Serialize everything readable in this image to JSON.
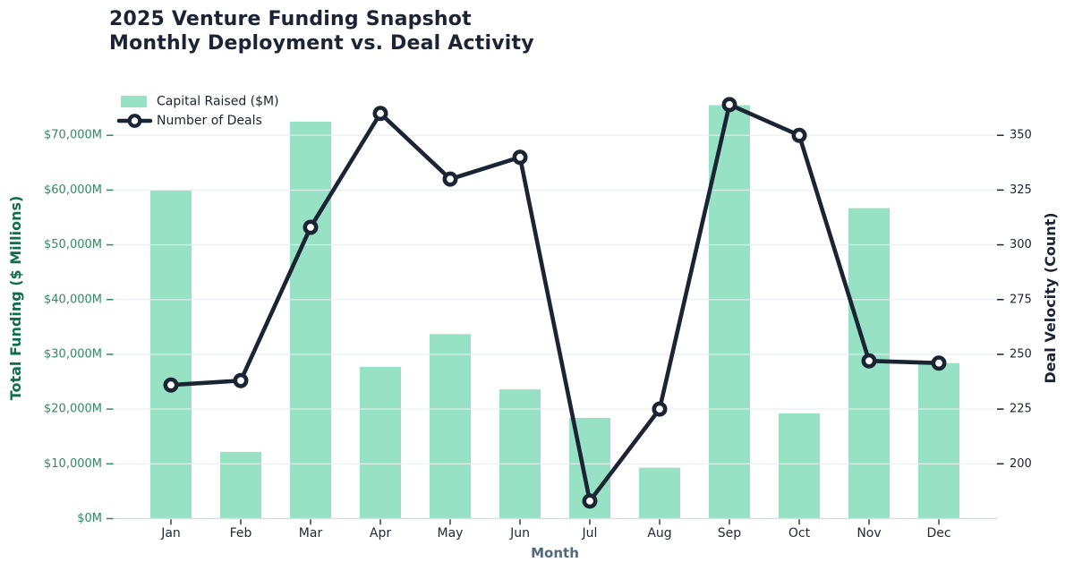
{
  "title": {
    "line1": "2025 Venture Funding Snapshot",
    "line2": "Monthly Deployment vs. Deal Activity"
  },
  "legend": {
    "items": [
      {
        "label": "Capital Raised ($M)",
        "swatch": "bar-swatch"
      },
      {
        "label": "Number of Deals",
        "swatch": "line-marker"
      }
    ],
    "position": "top-left"
  },
  "chart_data": {
    "type": "bar+line",
    "title": [
      "2025 Venture Funding Snapshot",
      "Monthly Deployment vs. Deal Activity"
    ],
    "categories": [
      "Jan",
      "Feb",
      "Mar",
      "Apr",
      "May",
      "Jun",
      "Jul",
      "Aug",
      "Sep",
      "Oct",
      "Nov",
      "Dec"
    ],
    "series": [
      {
        "name": "Capital Raised ($M)",
        "type": "bar",
        "yaxis": "left",
        "values": [
          60000,
          12200,
          72500,
          27700,
          33700,
          23600,
          18400,
          9300,
          75500,
          19200,
          56700,
          28400
        ]
      },
      {
        "name": "Number of Deals",
        "type": "line",
        "yaxis": "right",
        "values": [
          236,
          238,
          308,
          360,
          330,
          340,
          183,
          225,
          364,
          350,
          247,
          246
        ]
      }
    ],
    "xlabel": "Month",
    "left_axis": {
      "label": "Total Funding ($ Millions)",
      "ticks": [
        "$0M",
        "$10,000M",
        "$20,000M",
        "$30,000M",
        "$40,000M",
        "$50,000M",
        "$60,000M",
        "$70,000M"
      ],
      "tick_values": [
        0,
        10000,
        20000,
        30000,
        40000,
        50000,
        60000,
        70000
      ],
      "range": [
        0,
        80000
      ]
    },
    "right_axis": {
      "label": "Deal Velocity (Count)",
      "ticks": [
        "200",
        "225",
        "250",
        "275",
        "300",
        "325",
        "350"
      ],
      "tick_values": [
        200,
        225,
        250,
        275,
        300,
        325,
        350
      ],
      "range": [
        175,
        375
      ]
    },
    "grid": "horizontal",
    "legend_position": "top-left"
  },
  "colors": {
    "bar": "#97e2c5",
    "line": "#1b2433",
    "title": "#1b2335",
    "left_axis_label": "#0f6e4b",
    "left_tick": "#2e8b5f",
    "right_axis_label": "#1b2433",
    "right_tick": "#1a2330",
    "x_tick": "#222a36",
    "xlabel": "#53687e",
    "legend_text": "#1a2330",
    "grid": "#e8edf2",
    "baseline": "#d8dde3",
    "x_tick_mark": "#2a3340",
    "background": "#ffffff"
  }
}
